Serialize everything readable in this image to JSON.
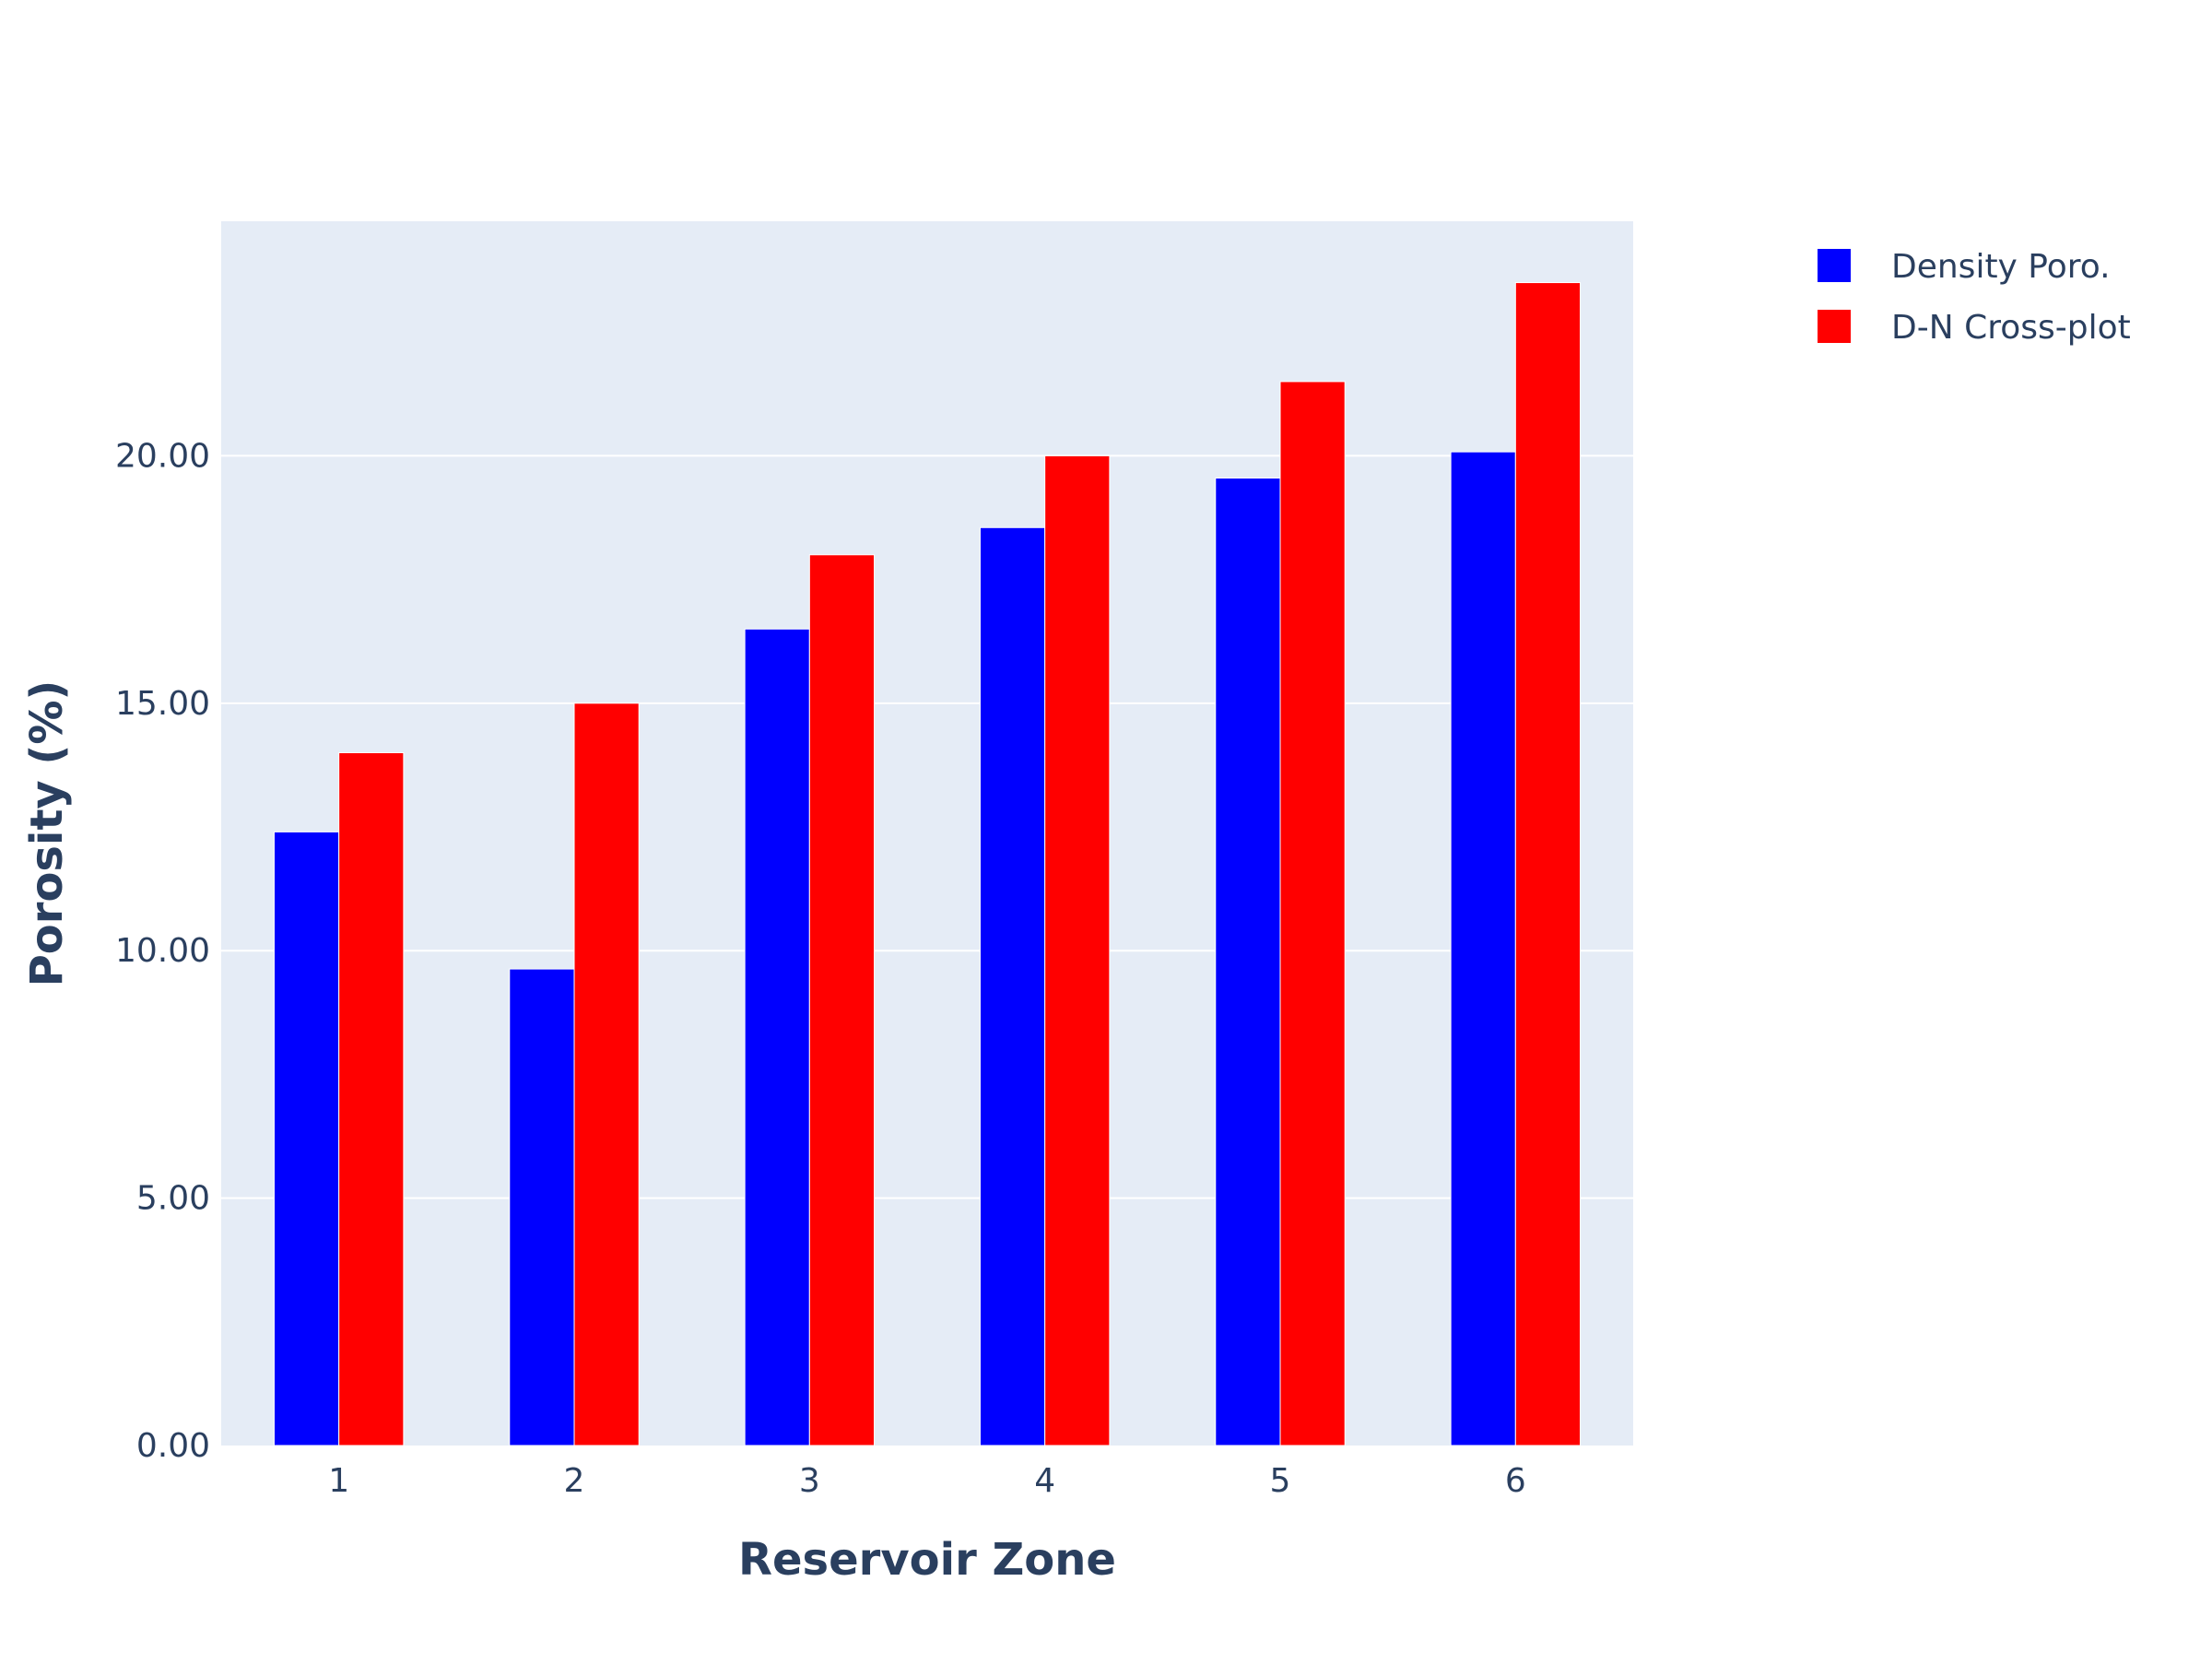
{
  "chart_data": {
    "type": "bar",
    "title": "",
    "xlabel": "Reservoir Zone",
    "ylabel": "Porosity (%)",
    "categories": [
      "1",
      "2",
      "3",
      "4",
      "5",
      "6"
    ],
    "series": [
      {
        "name": "Density Poro.",
        "color": "#0000ff",
        "values": [
          12.4,
          9.63,
          16.5,
          18.55,
          19.55,
          20.08
        ]
      },
      {
        "name": "D-N Cross-plot",
        "color": "#ff0000",
        "values": [
          14.0,
          15.0,
          18.0,
          20.0,
          21.5,
          23.5
        ]
      }
    ],
    "ylim": [
      0,
      24.74
    ],
    "yticks": [
      "0.00",
      "5.00",
      "10.00",
      "15.00",
      "20.00"
    ],
    "ytick_values": [
      0,
      5,
      10,
      15,
      20
    ],
    "grid": true,
    "legend_position": "top-right",
    "plot_background": "#e5ecf6"
  }
}
